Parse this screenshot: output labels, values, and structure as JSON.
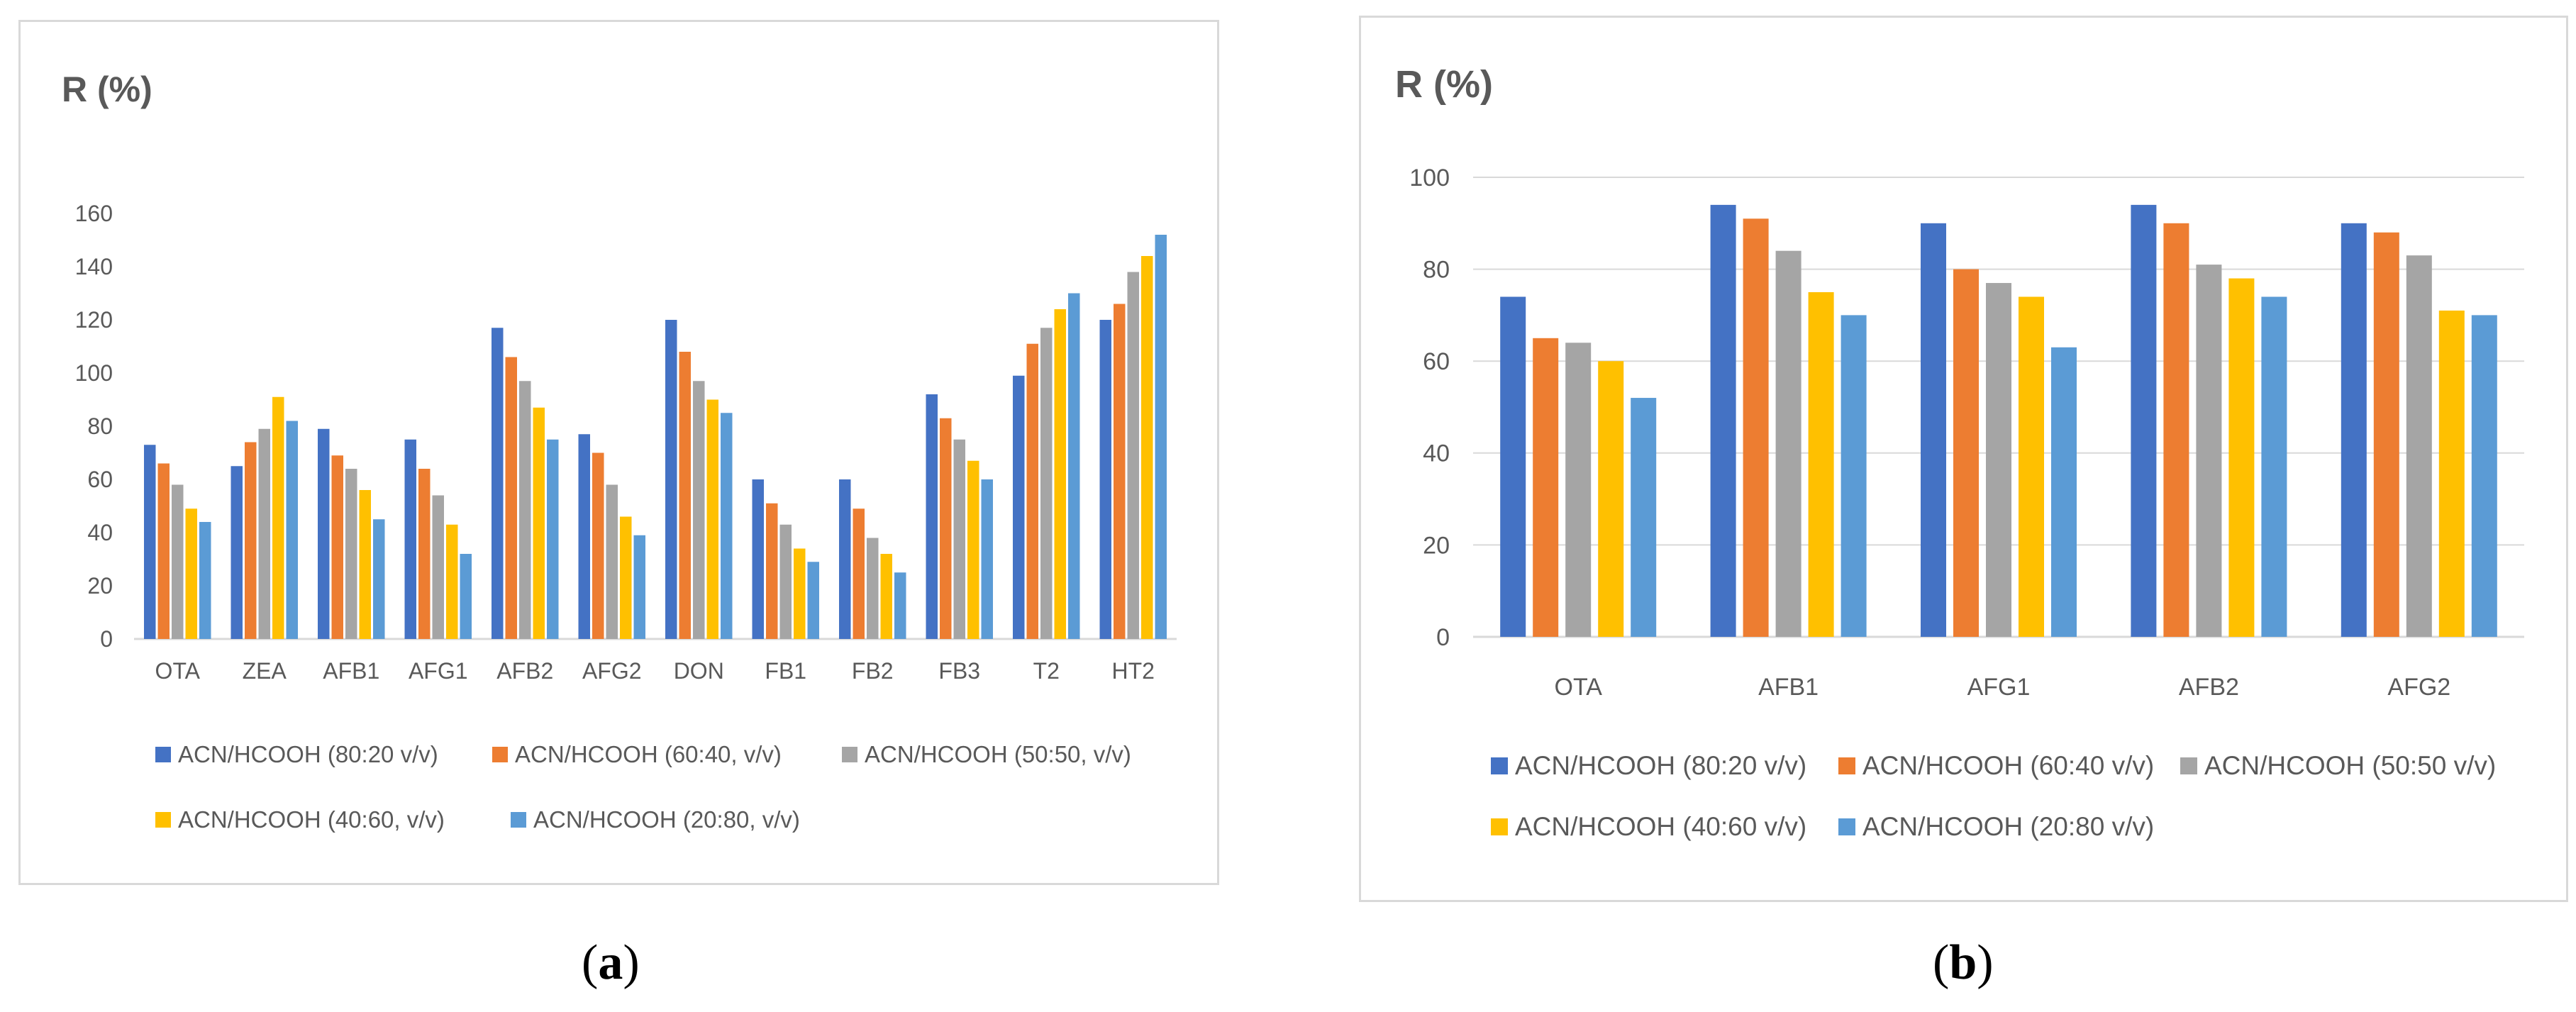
{
  "colors": {
    "s1": "#4472c4",
    "s2": "#ed7d31",
    "s3": "#a5a5a5",
    "s4": "#ffc000",
    "s5": "#5b9bd5",
    "grid": "#d9d9d9",
    "text": "#595959"
  },
  "panel_labels": {
    "a": {
      "open": "(",
      "letter": "a",
      "close": ")"
    },
    "b": {
      "open": "(",
      "letter": "b",
      "close": ")"
    }
  },
  "chart_data": [
    {
      "id": "a",
      "type": "bar",
      "title": "R (%)",
      "xlabel": "",
      "ylabel": "R (%)",
      "ylim": [
        0,
        160
      ],
      "ytick_step": 20,
      "grid": false,
      "legend_position": "bottom",
      "categories": [
        "OTA",
        "ZEA",
        "AFB1",
        "AFG1",
        "AFB2",
        "AFG2",
        "DON",
        "FB1",
        "FB2",
        "FB3",
        "T2",
        "HT2"
      ],
      "series": [
        {
          "name": "ACN/HCOOH (80:20 v/v)",
          "color": "#4472c4",
          "values": [
            73,
            65,
            79,
            75,
            117,
            77,
            120,
            60,
            60,
            92,
            99,
            120
          ]
        },
        {
          "name": "ACN/HCOOH (60:40, v/v)",
          "color": "#ed7d31",
          "values": [
            66,
            74,
            69,
            64,
            106,
            70,
            108,
            51,
            49,
            83,
            111,
            126
          ]
        },
        {
          "name": "ACN/HCOOH (50:50, v/v)",
          "color": "#a5a5a5",
          "values": [
            58,
            79,
            64,
            54,
            97,
            58,
            97,
            43,
            38,
            75,
            117,
            138
          ]
        },
        {
          "name": "ACN/HCOOH (40:60, v/v)",
          "color": "#ffc000",
          "values": [
            49,
            91,
            56,
            43,
            87,
            46,
            90,
            34,
            32,
            67,
            124,
            144
          ]
        },
        {
          "name": "ACN/HCOOH (20:80, v/v)",
          "color": "#5b9bd5",
          "values": [
            44,
            82,
            45,
            32,
            75,
            39,
            85,
            29,
            25,
            60,
            130,
            152
          ]
        }
      ]
    },
    {
      "id": "b",
      "type": "bar",
      "title": "R (%)",
      "xlabel": "",
      "ylabel": "R (%)",
      "ylim": [
        0,
        100
      ],
      "ytick_step": 20,
      "grid": true,
      "legend_position": "bottom",
      "categories": [
        "OTA",
        "AFB1",
        "AFG1",
        "AFB2",
        "AFG2"
      ],
      "series": [
        {
          "name": "ACN/HCOOH (80:20 v/v)",
          "color": "#4472c4",
          "values": [
            74,
            94,
            90,
            94,
            90
          ]
        },
        {
          "name": "ACN/HCOOH (60:40 v/v)",
          "color": "#ed7d31",
          "values": [
            65,
            91,
            80,
            90,
            88
          ]
        },
        {
          "name": "ACN/HCOOH (50:50 v/v)",
          "color": "#a5a5a5",
          "values": [
            64,
            84,
            77,
            81,
            83
          ]
        },
        {
          "name": "ACN/HCOOH (40:60 v/v)",
          "color": "#ffc000",
          "values": [
            60,
            75,
            74,
            78,
            71
          ]
        },
        {
          "name": "ACN/HCOOH (20:80 v/v)",
          "color": "#5b9bd5",
          "values": [
            52,
            70,
            63,
            74,
            70
          ]
        }
      ]
    }
  ]
}
